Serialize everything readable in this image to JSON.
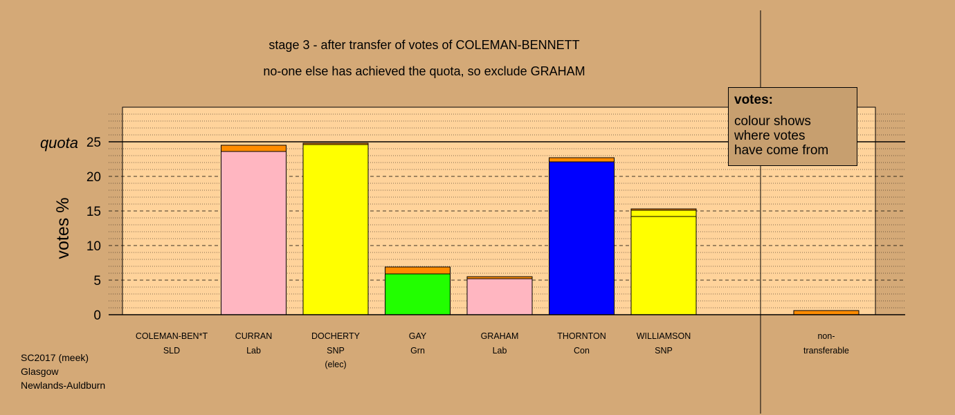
{
  "chart_data": {
    "type": "bar",
    "title": "stage 3 - after transfer of votes of COLEMAN-BENNETT",
    "subtitle": "no-one else has achieved the quota, so exclude GRAHAM",
    "ylabel": "votes %",
    "ylim": [
      0,
      30
    ],
    "yticks": [
      0,
      5,
      10,
      15,
      20,
      25
    ],
    "quota": {
      "label": "quota",
      "value": 25
    },
    "grid": true,
    "categories": [
      {
        "name": "COLEMAN-BEN*T",
        "party": "SLD",
        "note": "",
        "color": "#ff8c00",
        "segments": []
      },
      {
        "name": "CURRAN",
        "party": "Lab",
        "note": "",
        "color": "#ffb6c1",
        "segments": [
          {
            "value": 23.6,
            "color": "#ffb6c1"
          },
          {
            "value": 0.9,
            "color": "#ff8c00"
          }
        ]
      },
      {
        "name": "DOCHERTY",
        "party": "SNP",
        "note": "(elec)",
        "color": "#ffff00",
        "segments": [
          {
            "value": 24.6,
            "color": "#ffff00"
          },
          {
            "value": 0.2,
            "color": "#ff8c00"
          }
        ]
      },
      {
        "name": "GAY",
        "party": "Grn",
        "note": "",
        "color": "#22ff00",
        "segments": [
          {
            "value": 5.9,
            "color": "#22ff00"
          },
          {
            "value": 1.0,
            "color": "#ff8c00"
          }
        ]
      },
      {
        "name": "GRAHAM",
        "party": "Lab",
        "note": "",
        "color": "#ffb6c1",
        "segments": [
          {
            "value": 5.2,
            "color": "#ffb6c1"
          },
          {
            "value": 0.3,
            "color": "#ff8c00"
          }
        ]
      },
      {
        "name": "THORNTON",
        "party": "Con",
        "note": "",
        "color": "#0000ff",
        "segments": [
          {
            "value": 22.1,
            "color": "#0000ff"
          },
          {
            "value": 0.6,
            "color": "#ff8c00"
          }
        ]
      },
      {
        "name": "WILLIAMSON",
        "party": "SNP",
        "note": "",
        "color": "#ffff00",
        "segments": [
          {
            "value": 14.2,
            "color": "#ffff00"
          },
          {
            "value": 0.9,
            "color": "#ffff00"
          },
          {
            "value": 0.2,
            "color": "#ff8c00"
          }
        ]
      }
    ],
    "nontransferable": {
      "label1": "non-",
      "label2": "transferable",
      "segments": [
        {
          "value": 0.6,
          "color": "#ff8c00"
        }
      ]
    },
    "legend": {
      "title": "votes:",
      "lines": [
        "colour shows",
        "where votes",
        "have come from"
      ],
      "placement": "top-right"
    }
  },
  "footer": [
    "SC2017 (meek)",
    "Glasgow",
    "Newlands-Auldburn"
  ]
}
